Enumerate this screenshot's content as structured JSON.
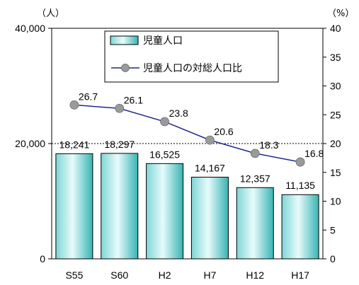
{
  "chart_data": {
    "type": "bar",
    "categories": [
      "S55",
      "S60",
      "H2",
      "H7",
      "H12",
      "H17"
    ],
    "series": [
      {
        "name": "児童人口",
        "type": "bar",
        "axis": "left",
        "values": [
          18241,
          18297,
          16525,
          14167,
          12357,
          11135
        ],
        "labels": [
          "18,241",
          "18,297",
          "16,525",
          "14,167",
          "12,357",
          "11,135"
        ],
        "color": "#5cc8c8"
      },
      {
        "name": "児童人口の対総人口比",
        "type": "line",
        "axis": "right",
        "values": [
          26.7,
          26.1,
          23.8,
          20.6,
          18.3,
          16.8
        ],
        "labels": [
          "26.7",
          "26.1",
          "23.8",
          "20.6",
          "18.3",
          "16.8"
        ],
        "line_color": "#1f2a8c",
        "marker_color": "#9a9a9a"
      }
    ],
    "left_axis": {
      "unit": "（人）",
      "ylim": [
        0,
        40000
      ],
      "ticks": [
        0,
        20000,
        40000
      ],
      "tick_labels": [
        "0",
        "20,000",
        "40,000"
      ]
    },
    "right_axis": {
      "unit": "（%）",
      "ylim": [
        0,
        40
      ],
      "ticks": [
        0,
        5,
        10,
        15,
        20,
        25,
        30,
        35,
        40
      ],
      "tick_labels": [
        "0",
        "5",
        "10",
        "15",
        "20",
        "25",
        "30",
        "35",
        "40"
      ]
    },
    "reference_line": {
      "value": 20000,
      "style": "dotted"
    },
    "legend": {
      "placement": "top-center"
    }
  }
}
